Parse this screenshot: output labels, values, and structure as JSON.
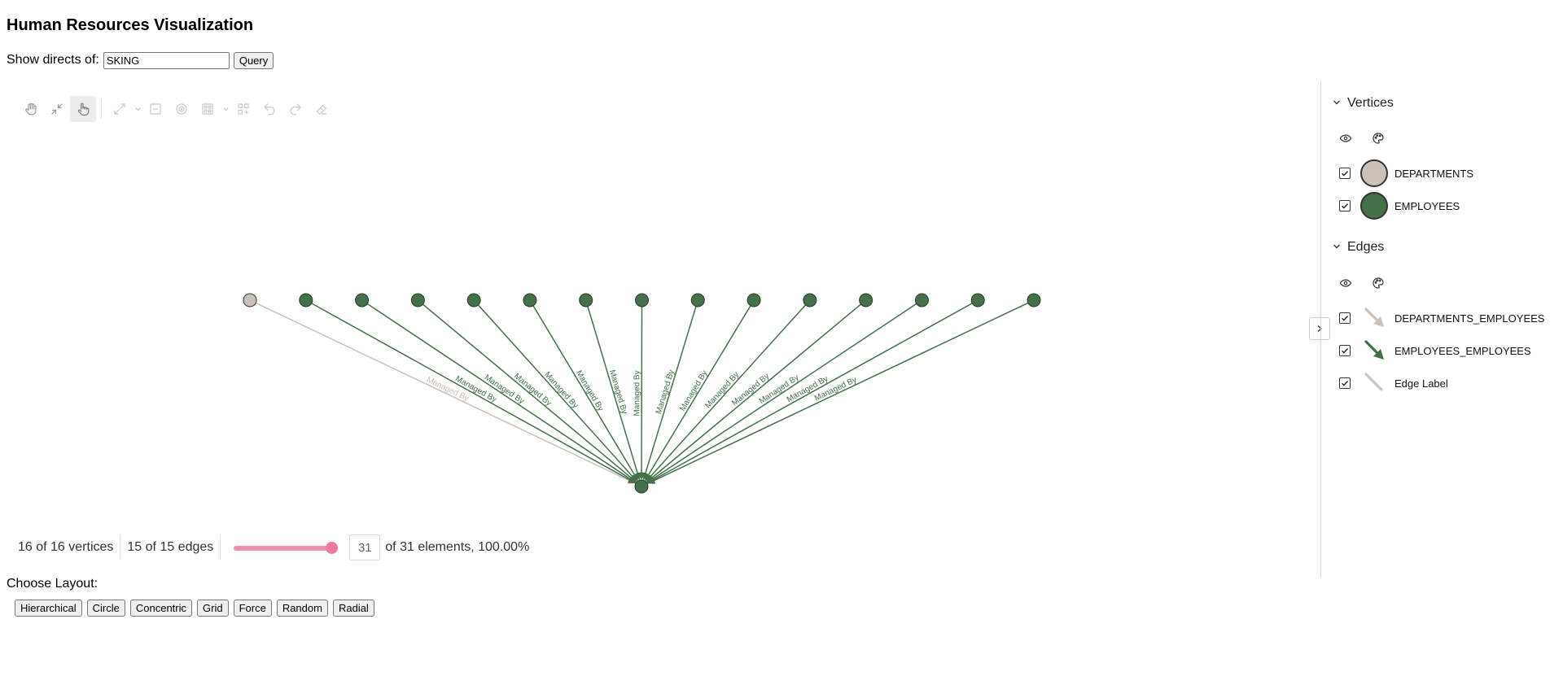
{
  "header": {
    "title": "Human Resources Visualization"
  },
  "query": {
    "label": "Show directs of:",
    "value": "SKING",
    "button": "Query"
  },
  "toolbar": {
    "icons": [
      "pan-icon",
      "fit-icon",
      "select-icon",
      "expand-icon",
      "caret-icon",
      "collapse-icon",
      "focus-icon",
      "grid-icon",
      "caret-icon",
      "group-icon",
      "undo-icon",
      "redo-icon",
      "eraser-icon"
    ]
  },
  "graph": {
    "edge_label": "Managed By",
    "colors": {
      "employee": "#44704a",
      "department": "#cbc1b8",
      "node_stroke": "#2f3b30"
    },
    "top_nodes": [
      {
        "type": "DEPARTMENTS"
      },
      {
        "type": "EMPLOYEES"
      },
      {
        "type": "EMPLOYEES"
      },
      {
        "type": "EMPLOYEES"
      },
      {
        "type": "EMPLOYEES"
      },
      {
        "type": "EMPLOYEES"
      },
      {
        "type": "EMPLOYEES"
      },
      {
        "type": "EMPLOYEES"
      },
      {
        "type": "EMPLOYEES"
      },
      {
        "type": "EMPLOYEES"
      },
      {
        "type": "EMPLOYEES"
      },
      {
        "type": "EMPLOYEES"
      },
      {
        "type": "EMPLOYEES"
      },
      {
        "type": "EMPLOYEES"
      },
      {
        "type": "EMPLOYEES"
      }
    ],
    "center_node": {
      "type": "EMPLOYEES"
    }
  },
  "status": {
    "vertices": "16 of 16 vertices",
    "edges": "15 of 15 edges",
    "slider_fraction": 1.0,
    "count": "31",
    "elements": "of 31 elements, 100.00%"
  },
  "legend": {
    "vertices_title": "Vertices",
    "vertices": [
      {
        "label": "DEPARTMENTS",
        "color": "#cbc1b8"
      },
      {
        "label": "EMPLOYEES",
        "color": "#44704a"
      }
    ],
    "edges_title": "Edges",
    "edges": [
      {
        "label": "DEPARTMENTS_EMPLOYEES",
        "color": "#cbc1b8"
      },
      {
        "label": "EMPLOYEES_EMPLOYEES",
        "color": "#44704a"
      },
      {
        "label": "Edge Label",
        "color": "#c6c6c6"
      }
    ]
  },
  "layout": {
    "label": "Choose Layout:",
    "buttons": [
      "Hierarchical",
      "Circle",
      "Concentric",
      "Grid",
      "Force",
      "Random",
      "Radial"
    ]
  }
}
